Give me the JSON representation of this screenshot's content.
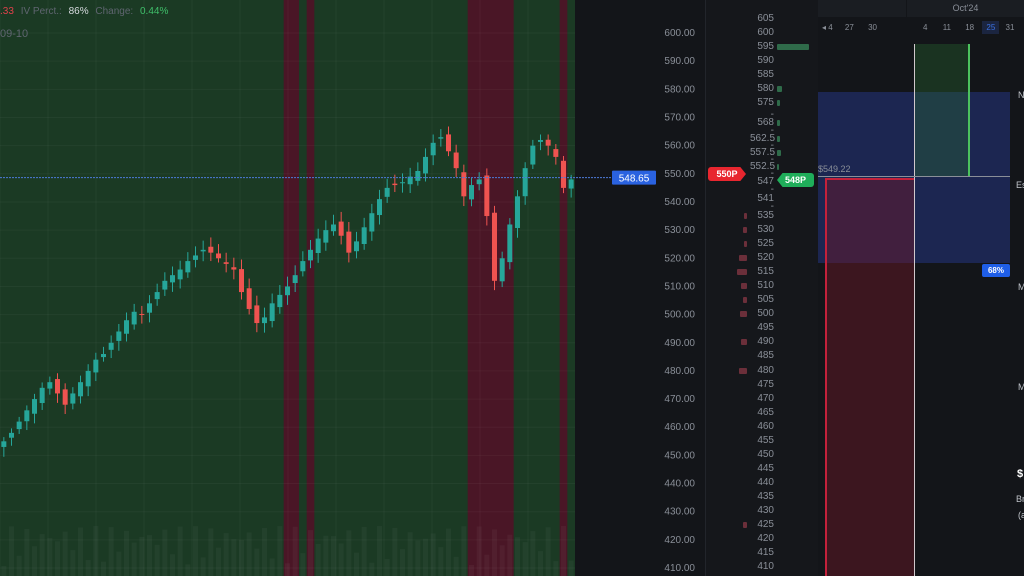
{
  "header": {
    "price_fragment": ".33",
    "iv_label": "IV Perct.:",
    "iv_value": "86%",
    "change_label": "Change:",
    "change_value": "0.44%"
  },
  "chart_date_label": "09-10",
  "chart_data": {
    "type": "candlestick",
    "ylim": [
      405,
      608
    ],
    "y_ticks": [
      600,
      590,
      580,
      570,
      560,
      550,
      540,
      530,
      520,
      510,
      500,
      490,
      480,
      470,
      460,
      450,
      440,
      430,
      420,
      410
    ],
    "closes": [
      455,
      458,
      462,
      466,
      470,
      474,
      476,
      472,
      468,
      472,
      476,
      480,
      484,
      486,
      490,
      494,
      498,
      501,
      500,
      504,
      508,
      512,
      514,
      516,
      519,
      521,
      523,
      522,
      520,
      518,
      516,
      508,
      502,
      497,
      499,
      504,
      507,
      510,
      514,
      519,
      523,
      527,
      530,
      532,
      528,
      522,
      526,
      531,
      536,
      541,
      545,
      546,
      547,
      549,
      551,
      556,
      561,
      563,
      558,
      552,
      542,
      546,
      548,
      535,
      512,
      520,
      532,
      542,
      552,
      560,
      562,
      560,
      556,
      545,
      548
    ],
    "band_colors": {
      "up": "#1b3a24",
      "down": "#4a1626"
    },
    "down_bands": [
      [
        37,
        39
      ],
      [
        40,
        41
      ],
      [
        61,
        67
      ],
      [
        73,
        74
      ]
    ],
    "current_price": "548.65",
    "colors": {
      "up": "#26a69a",
      "down": "#ef5350",
      "price_line": "#4d7bd9"
    }
  },
  "strikes": {
    "labels": [
      "605",
      "600",
      "595",
      "590",
      "585",
      "580",
      "575",
      "-",
      "568",
      "-",
      "562.5",
      "-",
      "557.5",
      "-",
      "552.5",
      "-",
      "547",
      "-",
      "541",
      "-",
      "535",
      "530",
      "525",
      "520",
      "515",
      "510",
      "505",
      "500",
      "495",
      "490",
      "485",
      "480",
      "475",
      "470",
      "465",
      "460",
      "455",
      "450",
      "445",
      "440",
      "435",
      "430",
      "425",
      "420",
      "415",
      "410"
    ],
    "call_bars": {
      "595": 50,
      "580": 8,
      "575": 4,
      "568": 5,
      "562.5": 4,
      "557.5": 7,
      "552.5": 3
    },
    "put_bars": {
      "535": 3,
      "530": 4,
      "525": 3,
      "520": 8,
      "515": 10,
      "510": 6,
      "505": 4,
      "500": 7,
      "490": 6,
      "480": 8,
      "425": 4
    },
    "put_tag": "550P",
    "call_tag": "548P"
  },
  "right_panel": {
    "month": "Oct'24",
    "dates_left": [
      "◂ 4",
      "27",
      "30"
    ],
    "dates_right": [
      "4",
      "11",
      "18",
      "25",
      "31"
    ],
    "selected_date": "25",
    "price_label": "$549.22",
    "prob_badge": "68%",
    "fragments": [
      "N",
      "Es",
      "M",
      "M",
      "$",
      "Br",
      "(a"
    ]
  }
}
